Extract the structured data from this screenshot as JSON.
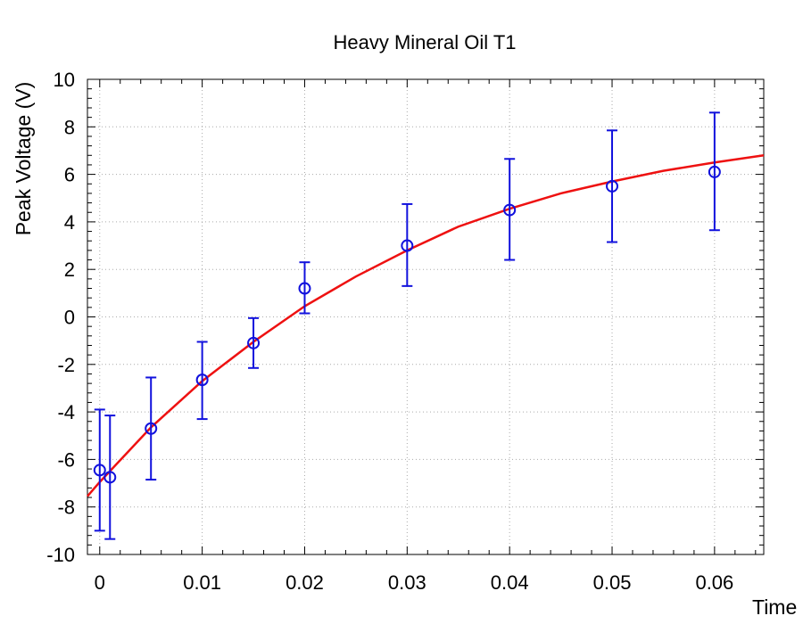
{
  "chart_data": {
    "type": "scatter",
    "title": "Heavy Mineral Oil T1",
    "xlabel": "Time",
    "ylabel": "Peak Voltage (V)",
    "xlim": [
      -0.0012,
      0.0648
    ],
    "ylim": [
      -10,
      10
    ],
    "grid": true,
    "x_ticks": [
      0,
      0.01,
      0.02,
      0.03,
      0.04,
      0.05,
      0.06
    ],
    "x_tick_labels": [
      "0",
      "0.01",
      "0.02",
      "0.03",
      "0.04",
      "0.05",
      "0.06"
    ],
    "y_ticks": [
      -10,
      -8,
      -6,
      -4,
      -2,
      0,
      2,
      4,
      6,
      8,
      10
    ],
    "y_tick_labels": [
      "-10",
      "-8",
      "-6",
      "-4",
      "-2",
      "0",
      "2",
      "4",
      "6",
      "8",
      "10"
    ],
    "colors": {
      "points": "#1111dd",
      "fit": "#ee1111",
      "grid": "#aaaaaa"
    },
    "series": [
      {
        "type": "scatter-errorbar",
        "x": [
          0,
          0.001,
          0.005,
          0.01,
          0.015,
          0.02,
          0.03,
          0.04,
          0.05,
          0.06
        ],
        "y": [
          -6.45,
          -6.75,
          -4.7,
          -2.65,
          -1.1,
          1.2,
          3.0,
          4.5,
          5.5,
          6.1
        ],
        "yerr_low": [
          2.55,
          2.6,
          2.15,
          1.65,
          1.05,
          1.05,
          1.7,
          2.1,
          2.35,
          2.45
        ],
        "yerr_high": [
          2.55,
          2.6,
          2.15,
          1.6,
          1.05,
          1.1,
          1.75,
          2.15,
          2.35,
          2.5
        ]
      },
      {
        "type": "line",
        "x": [
          -0.0012,
          0.0,
          0.005,
          0.01,
          0.015,
          0.02,
          0.025,
          0.03,
          0.035,
          0.04,
          0.045,
          0.05,
          0.055,
          0.06,
          0.0648
        ],
        "y": [
          -7.55,
          -6.95,
          -4.65,
          -2.7,
          -1.05,
          0.45,
          1.7,
          2.8,
          3.8,
          4.55,
          5.2,
          5.7,
          6.15,
          6.5,
          6.8
        ]
      }
    ]
  }
}
